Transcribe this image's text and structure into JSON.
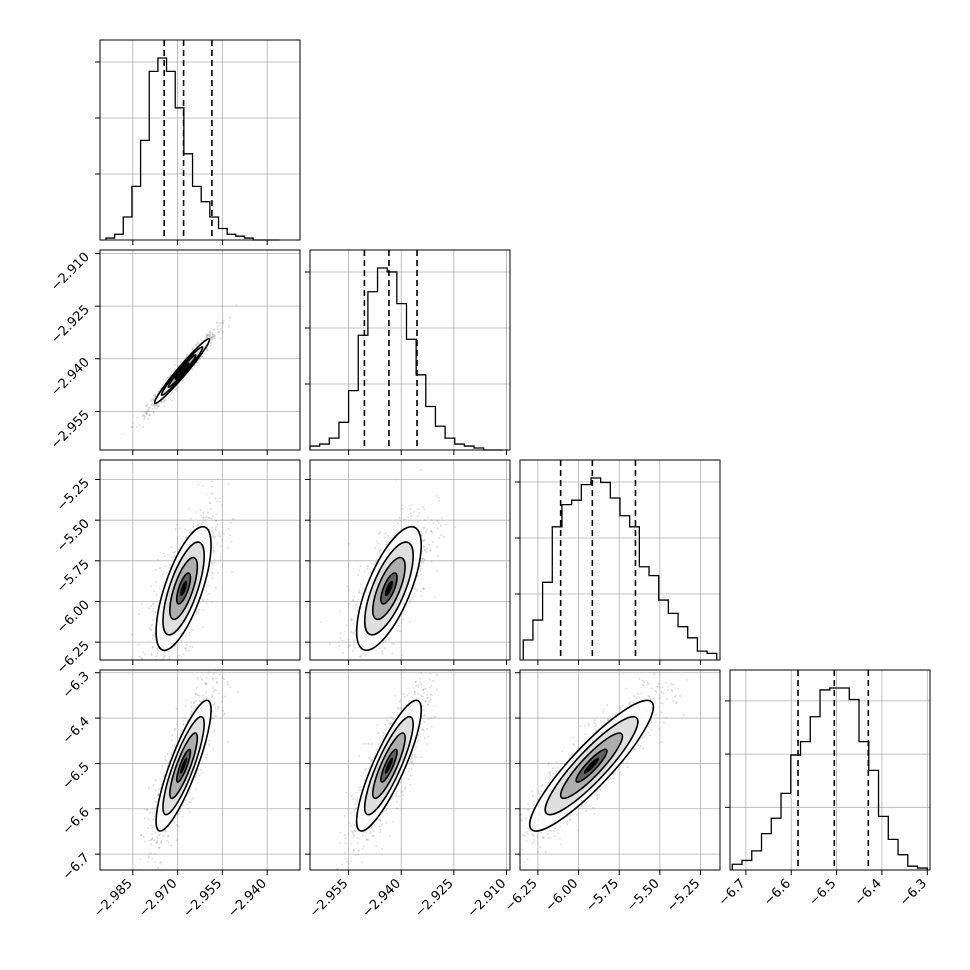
{
  "chart_data": {
    "type": "corner",
    "title": "",
    "parameters": [
      "",
      "",
      "",
      ""
    ],
    "colors": {
      "hist": "#000000",
      "grid": "#b0b0b0",
      "quantile": "#000000",
      "points": "#8c8c8c"
    },
    "grid": true,
    "axes": [
      {
        "range": [
          -2.996,
          -2.929
        ],
        "ticks": [
          -2.985,
          -2.97,
          -2.955,
          -2.94
        ],
        "tick_labels": [
          "−2.985",
          "−2.970",
          "−2.955",
          "−2.940"
        ]
      },
      {
        "range": [
          -2.966,
          -2.909
        ],
        "ticks": [
          -2.955,
          -2.94,
          -2.925,
          -2.91
        ],
        "tick_labels": [
          "−2.955",
          "−2.940",
          "−2.925",
          "−2.910"
        ]
      },
      {
        "range": [
          -6.36,
          -5.13
        ],
        "ticks": [
          -6.25,
          -6.0,
          -5.75,
          -5.5,
          -5.25
        ],
        "tick_labels": [
          "−6.25",
          "−6.00",
          "−5.75",
          "−5.50",
          "−5.25"
        ]
      },
      {
        "range": [
          -6.735,
          -6.294
        ],
        "ticks": [
          -6.7,
          -6.6,
          -6.5,
          -6.4,
          -6.3
        ],
        "tick_labels": [
          "−6.7",
          "−6.6",
          "−6.5",
          "−6.4",
          "−6.3"
        ]
      }
    ],
    "histograms": [
      {
        "bin_range": [
          -2.994,
          -2.936
        ],
        "counts": [
          1,
          3,
          12,
          28,
          52,
          88,
          95,
          88,
          69,
          45,
          28,
          20,
          12,
          6,
          3,
          2,
          1,
          0,
          0,
          0
        ],
        "quantiles": [
          -2.9745,
          -2.968,
          -2.9585
        ]
      },
      {
        "bin_range": [
          -2.966,
          -2.911
        ],
        "counts": [
          2,
          3,
          6,
          14,
          30,
          58,
          80,
          92,
          90,
          74,
          56,
          38,
          22,
          12,
          6,
          3,
          2,
          1,
          0,
          0
        ],
        "quantiles": [
          -2.9505,
          -2.9435,
          -2.9355
        ]
      },
      {
        "bin_range": [
          -6.34,
          -5.15
        ],
        "counts": [
          9,
          18,
          35,
          60,
          70,
          72,
          79,
          82,
          80,
          73,
          65,
          60,
          42,
          38,
          27,
          21,
          15,
          10,
          4,
          3
        ],
        "quantiles": [
          -6.11,
          -5.915,
          -5.65
        ]
      },
      {
        "bin_range": [
          -6.73,
          -6.3
        ],
        "counts": [
          3,
          5,
          10,
          19,
          27,
          40,
          60,
          67,
          80,
          94,
          95,
          95,
          89,
          67,
          52,
          28,
          16,
          8,
          2,
          1
        ],
        "quantiles": [
          -6.585,
          -6.505,
          -6.43
        ]
      }
    ],
    "pairs": [
      {
        "x": 0,
        "y": 1,
        "mean": [
          -2.9685,
          -2.9435
        ],
        "sd": [
          0.0046,
          0.0046
        ],
        "rho": 0.975
      },
      {
        "x": 0,
        "y": 2,
        "mean": [
          -2.968,
          -5.92
        ],
        "sd": [
          0.0046,
          0.19
        ],
        "rho": 0.7
      },
      {
        "x": 1,
        "y": 2,
        "mean": [
          -2.9435,
          -5.92
        ],
        "sd": [
          0.0046,
          0.19
        ],
        "rho": 0.7
      },
      {
        "x": 0,
        "y": 3,
        "mean": [
          -2.968,
          -6.505
        ],
        "sd": [
          0.0046,
          0.072
        ],
        "rho": 0.85
      },
      {
        "x": 1,
        "y": 3,
        "mean": [
          -2.9435,
          -6.505
        ],
        "sd": [
          0.0046,
          0.072
        ],
        "rho": 0.85
      },
      {
        "x": 2,
        "y": 3,
        "mean": [
          -5.92,
          -6.505
        ],
        "sd": [
          0.19,
          0.072
        ],
        "rho": 0.9
      }
    ],
    "contour_levels_sigma": [
      0.5,
      1.0,
      1.5,
      2.0
    ]
  }
}
